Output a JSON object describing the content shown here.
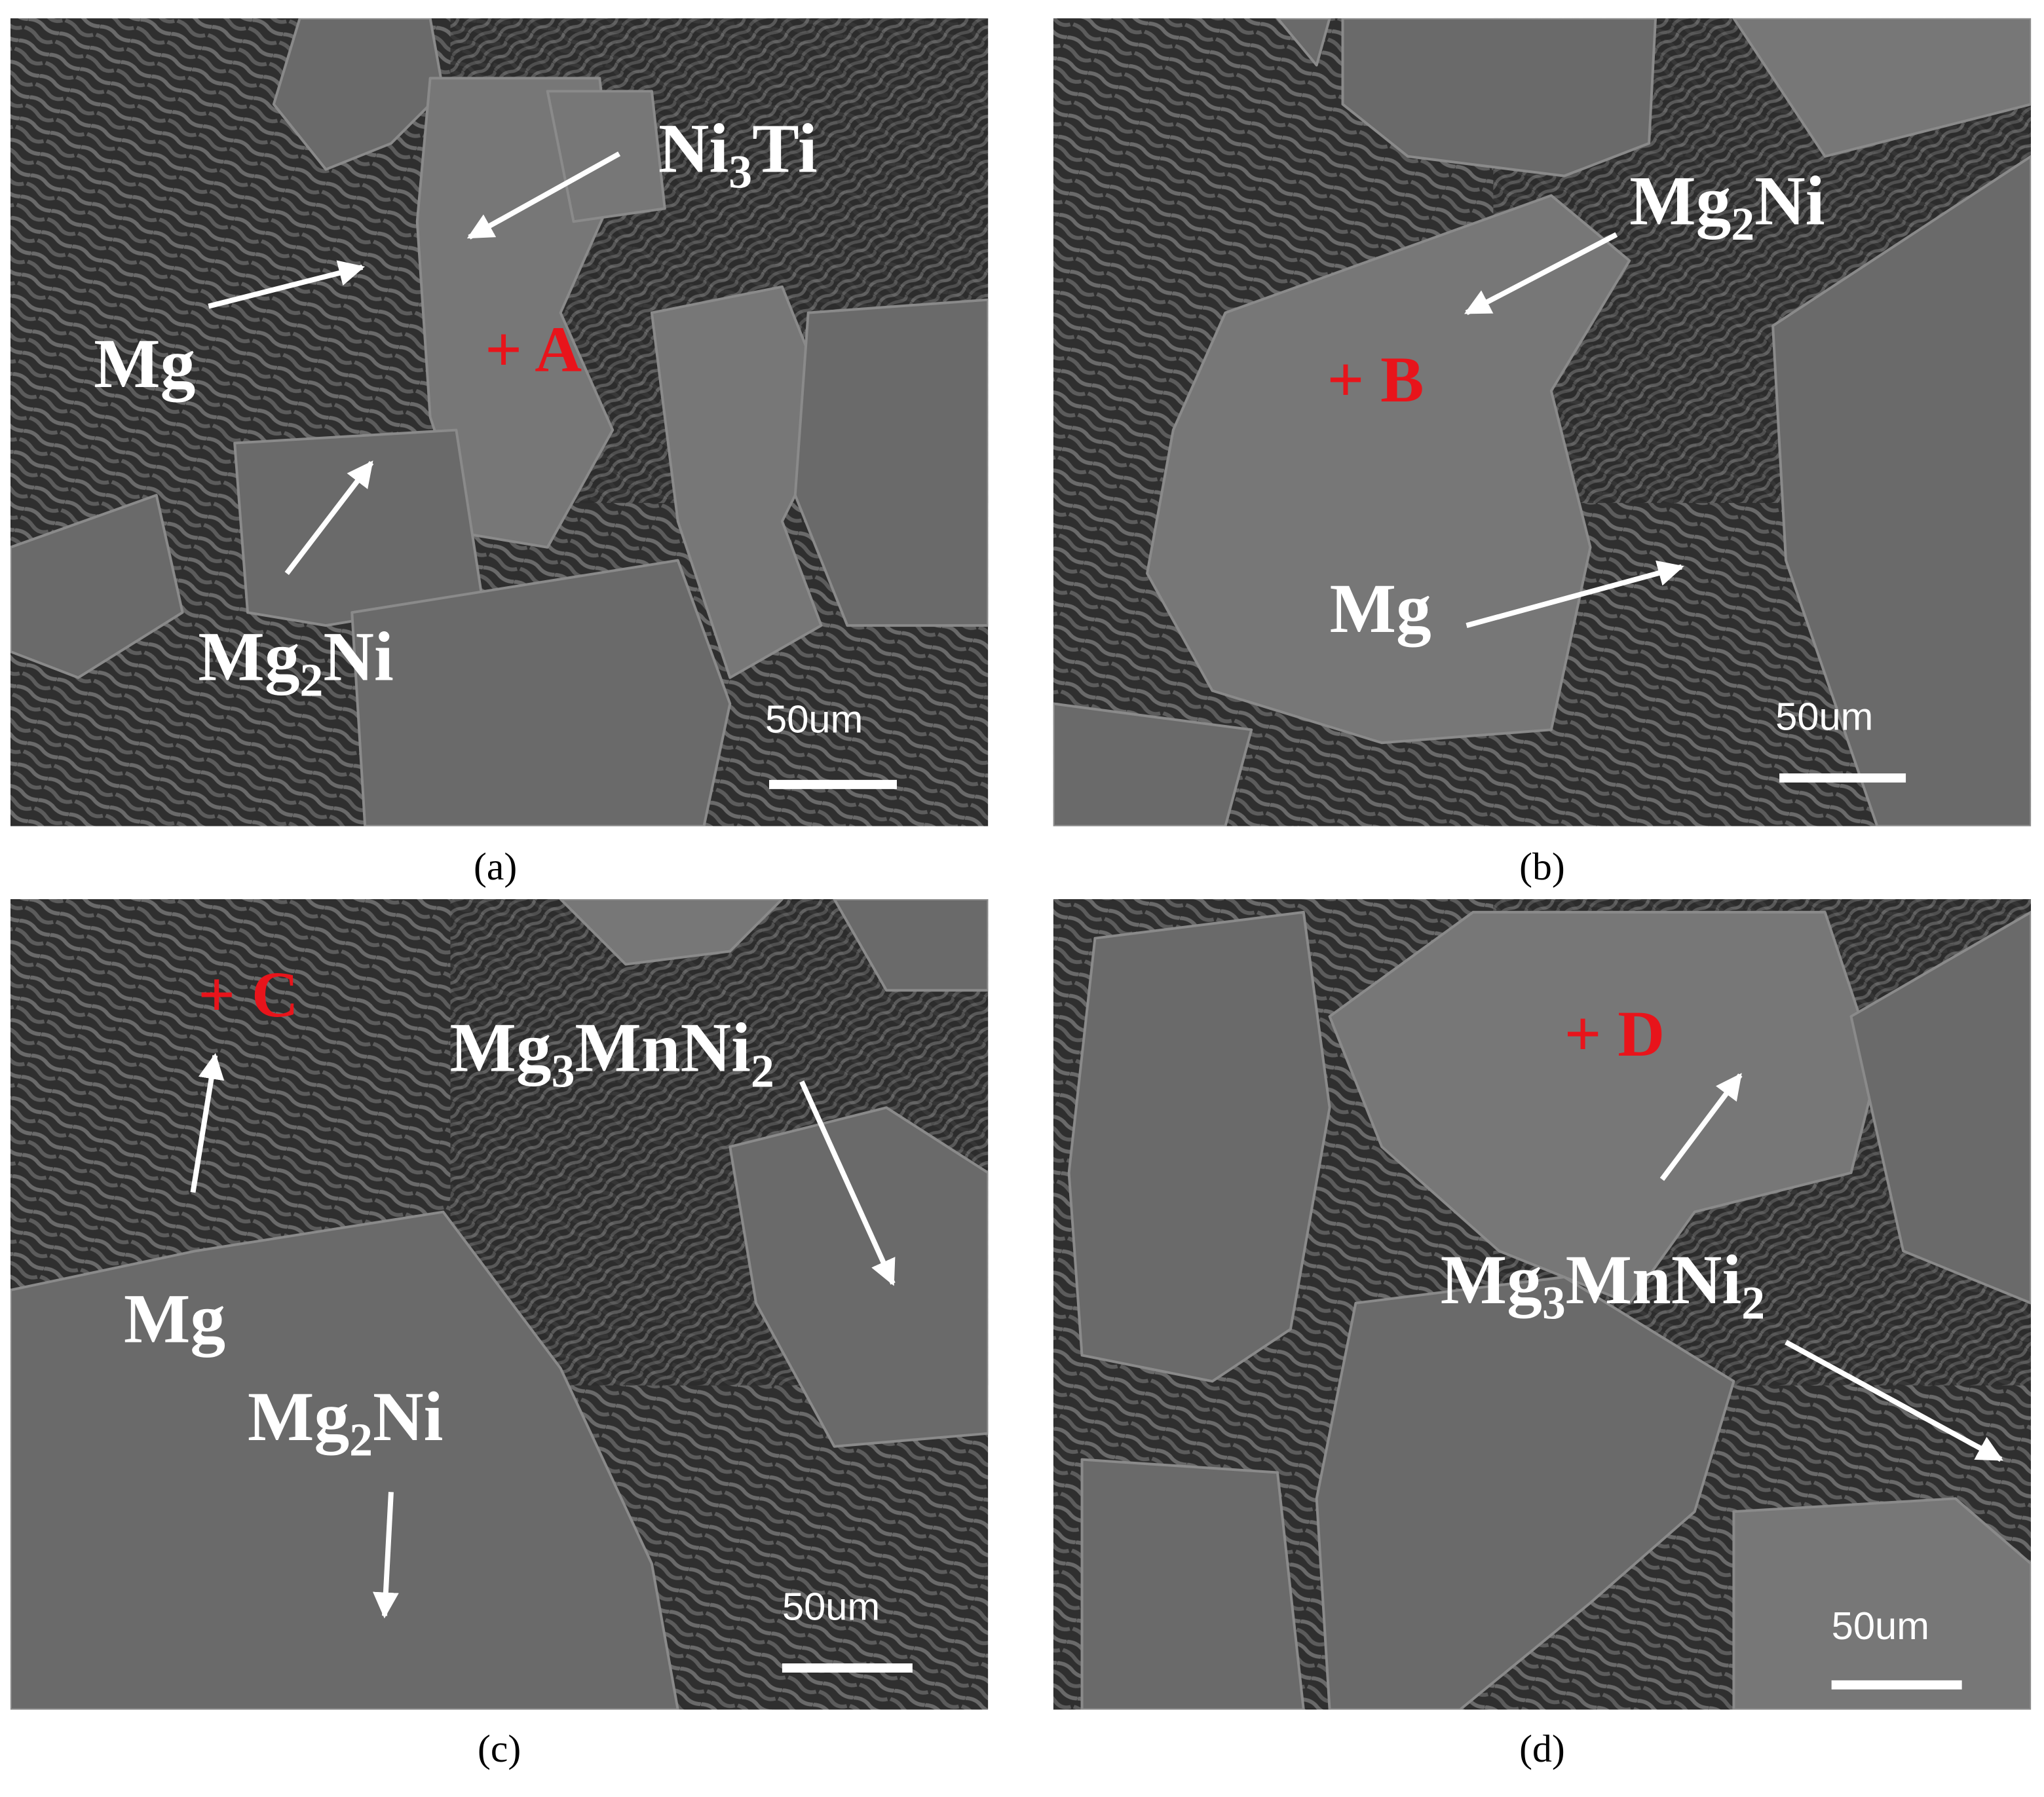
{
  "panels": [
    {
      "caption": "(a)",
      "marker": "+ A",
      "scale_bar": "50um",
      "labels": [
        {
          "parts": [
            {
              "text": "Ni"
            },
            {
              "text": "3",
              "sub": true
            },
            {
              "text": "Ti"
            }
          ]
        },
        {
          "parts": [
            {
              "text": "Mg"
            }
          ]
        },
        {
          "parts": [
            {
              "text": "Mg"
            },
            {
              "text": "2",
              "sub": true
            },
            {
              "text": "Ni"
            }
          ]
        }
      ]
    },
    {
      "caption": "(b)",
      "marker": "+ B",
      "scale_bar": "50um",
      "labels": [
        {
          "parts": [
            {
              "text": "Mg"
            },
            {
              "text": "2",
              "sub": true
            },
            {
              "text": "Ni"
            }
          ]
        },
        {
          "parts": [
            {
              "text": "Mg"
            }
          ]
        }
      ]
    },
    {
      "caption": "(c)",
      "marker": "+ C",
      "scale_bar": "50um",
      "labels": [
        {
          "parts": [
            {
              "text": "Mg"
            },
            {
              "text": "3",
              "sub": true
            },
            {
              "text": "MnNi"
            },
            {
              "text": "2",
              "sub": true
            }
          ]
        },
        {
          "parts": [
            {
              "text": "Mg"
            }
          ]
        },
        {
          "parts": [
            {
              "text": "Mg"
            },
            {
              "text": "2",
              "sub": true
            },
            {
              "text": "Ni"
            }
          ]
        }
      ]
    },
    {
      "caption": "(d)",
      "marker": "+ D",
      "scale_bar": "50um",
      "labels": [
        {
          "parts": [
            {
              "text": "Mg"
            },
            {
              "text": "3",
              "sub": true
            },
            {
              "text": "MnNi"
            },
            {
              "text": "2",
              "sub": true
            }
          ]
        }
      ]
    }
  ]
}
